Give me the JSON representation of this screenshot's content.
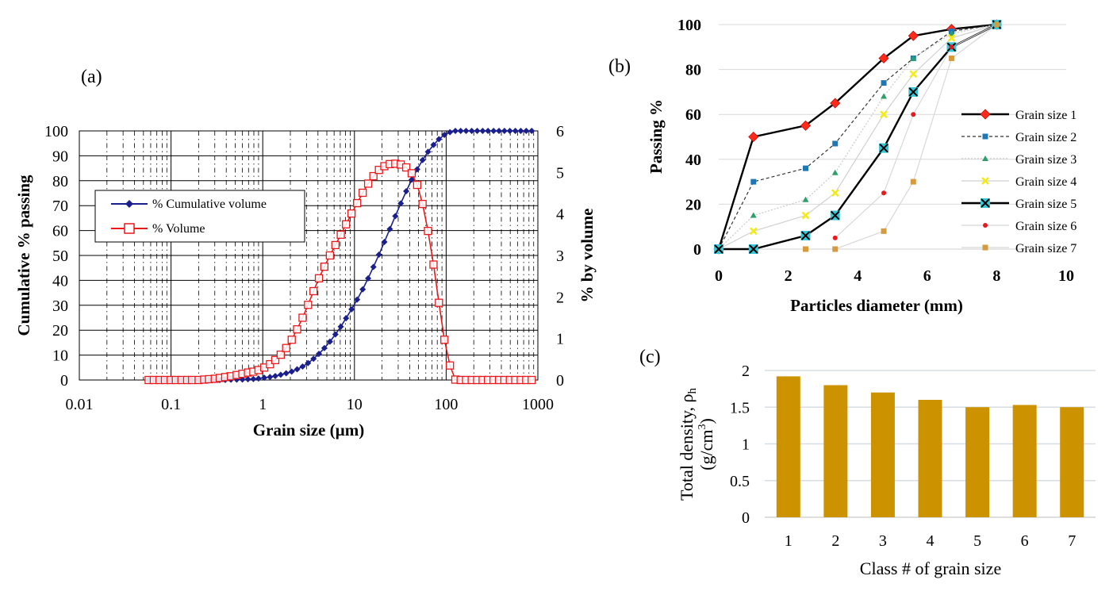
{
  "panels": {
    "a": {
      "label": "(a)"
    },
    "b": {
      "label": "(b)"
    },
    "c": {
      "label": "(c)"
    }
  },
  "chart_data": [
    {
      "id": "a",
      "type": "line",
      "xscale": "log",
      "xlim": [
        0.01,
        1000
      ],
      "xticks": [
        "0.01",
        "0.1",
        "1",
        "10",
        "100",
        "1000"
      ],
      "xlabel": "Grain size (µm)",
      "ylabel": "Cumulative % passing",
      "ylim": [
        0,
        100
      ],
      "yticks": [
        "0",
        "10",
        "20",
        "30",
        "40",
        "50",
        "60",
        "70",
        "80",
        "90",
        "100"
      ],
      "y2label": "% by volume",
      "y2lim": [
        0,
        6
      ],
      "y2ticks": [
        "0",
        "1",
        "2",
        "3",
        "4",
        "5",
        "6"
      ],
      "grid": true,
      "legend_position": "upper-left",
      "series": [
        {
          "name": "% Cumulative volume",
          "axis": "left",
          "color": "#1a1f8c",
          "marker": "diamond",
          "x": [
            0.057,
            0.065,
            0.075,
            0.086,
            0.099,
            0.113,
            0.13,
            0.15,
            0.17,
            0.2,
            0.23,
            0.26,
            0.3,
            0.34,
            0.39,
            0.45,
            0.52,
            0.6,
            0.69,
            0.79,
            0.9,
            1.04,
            1.2,
            1.37,
            1.57,
            1.8,
            2.07,
            2.37,
            2.72,
            3.12,
            3.58,
            4.1,
            4.7,
            5.4,
            6.2,
            7.1,
            8.1,
            9.3,
            10.7,
            12.3,
            14.1,
            16.1,
            18.5,
            21.2,
            24.3,
            27.9,
            32,
            36.7,
            42.1,
            48.3,
            55.3,
            63.4,
            72.8,
            83.4,
            95.7,
            110,
            126,
            144,
            165,
            190,
            218,
            250,
            286,
            329,
            377,
            432,
            495,
            568,
            651,
            747,
            857
          ],
          "values": [
            0,
            0,
            0,
            0,
            0,
            0,
            0,
            0,
            0,
            0,
            0,
            0,
            0,
            0,
            0.05,
            0.1,
            0.15,
            0.2,
            0.3,
            0.4,
            0.6,
            0.9,
            1.2,
            1.6,
            2.1,
            2.7,
            3.4,
            4.3,
            5.4,
            6.8,
            8.5,
            10.5,
            12.8,
            15.4,
            18.3,
            21.4,
            24.8,
            28.4,
            32.3,
            36.4,
            40.8,
            45.4,
            50.3,
            55.4,
            60.6,
            65.8,
            70.9,
            75.8,
            80.4,
            84.6,
            88.3,
            91.6,
            94.4,
            96.7,
            98.4,
            99.5,
            100,
            100,
            100,
            100,
            100,
            100,
            100,
            100,
            100,
            100,
            100,
            100,
            100,
            100,
            100
          ]
        },
        {
          "name": "% Volume",
          "axis": "right",
          "color": "#e8191c",
          "marker": "square-open",
          "x": [
            0.057,
            0.065,
            0.075,
            0.086,
            0.099,
            0.113,
            0.13,
            0.15,
            0.17,
            0.2,
            0.23,
            0.26,
            0.3,
            0.34,
            0.39,
            0.45,
            0.52,
            0.6,
            0.69,
            0.79,
            0.9,
            1.04,
            1.2,
            1.37,
            1.57,
            1.8,
            2.07,
            2.37,
            2.72,
            3.12,
            3.58,
            4.1,
            4.7,
            5.4,
            6.2,
            7.1,
            8.1,
            9.3,
            10.7,
            12.3,
            14.1,
            16.1,
            18.5,
            21.2,
            24.3,
            27.9,
            32,
            36.7,
            42.1,
            48.3,
            55.3,
            63.4,
            72.8,
            83.4,
            95.7,
            110,
            126,
            144,
            165,
            190,
            218,
            250,
            286,
            329,
            377,
            432,
            495,
            568,
            651,
            747,
            857
          ],
          "values": [
            0,
            0,
            0,
            0,
            0,
            0,
            0,
            0,
            0,
            0,
            0.01,
            0.02,
            0.03,
            0.05,
            0.07,
            0.09,
            0.12,
            0.15,
            0.18,
            0.2,
            0.24,
            0.3,
            0.38,
            0.48,
            0.61,
            0.77,
            0.97,
            1.22,
            1.5,
            1.81,
            2.14,
            2.45,
            2.73,
            3,
            3.25,
            3.5,
            3.75,
            4.01,
            4.26,
            4.51,
            4.73,
            4.91,
            5.06,
            5.15,
            5.2,
            5.21,
            5.19,
            5.12,
            4.98,
            4.7,
            4.24,
            3.59,
            2.78,
            1.86,
            0.97,
            0.35,
            0.01,
            0,
            0,
            0,
            0,
            0,
            0,
            0,
            0,
            0,
            0,
            0,
            0,
            0,
            0
          ]
        }
      ]
    },
    {
      "id": "b",
      "type": "line",
      "xlim": [
        0,
        10
      ],
      "xticks": [
        "0",
        "2",
        "4",
        "6",
        "8",
        "10"
      ],
      "xlabel": "Particles diameter (mm)",
      "ylabel": "Passing %",
      "ylim": [
        0,
        100
      ],
      "yticks": [
        "0",
        "20",
        "40",
        "60",
        "80",
        "100"
      ],
      "grid": "horizontal",
      "legend_position": "right",
      "x": [
        0,
        1,
        2.5,
        3.35,
        4.75,
        5.6,
        6.7,
        8
      ],
      "series": [
        {
          "name": "Grain size 1",
          "color": "#000000",
          "marker": "diamond",
          "marker_color": "#ff2a1a",
          "line": "solid-thick",
          "values": [
            0,
            50,
            55,
            65,
            85,
            95,
            98,
            100
          ]
        },
        {
          "name": "Grain size 2",
          "color": "#333333",
          "marker": "square",
          "marker_color": "#1f78b4",
          "line": "dashed",
          "values": [
            0,
            30,
            36,
            47,
            74,
            85,
            97,
            100
          ]
        },
        {
          "name": "Grain size 3",
          "color": "#cfcfcf",
          "marker": "triangle",
          "marker_color": "#2e9e6b",
          "line": "dotted",
          "values": [
            0,
            15,
            22,
            34,
            68,
            85,
            96,
            100
          ]
        },
        {
          "name": "Grain size 4",
          "color": "#d0d0d0",
          "marker": "x",
          "marker_color": "#f2ea1b",
          "line": "thin",
          "values": [
            0,
            8,
            15,
            25,
            60,
            78,
            94,
            100
          ]
        },
        {
          "name": "Grain size 5",
          "color": "#000000",
          "marker": "x-box",
          "marker_color": "#36c6d6",
          "line": "solid-thick",
          "values": [
            0,
            0,
            6,
            15,
            45,
            70,
            90,
            100
          ]
        },
        {
          "name": "Grain size 6",
          "color": "#d8d8d8",
          "marker": "circle",
          "marker_color": "#e8191c",
          "line": "thin",
          "values": [
            null,
            null,
            null,
            5,
            25,
            60,
            90,
            100
          ]
        },
        {
          "name": "Grain size 7",
          "color": "#d8d8d8",
          "marker": "square",
          "marker_color": "#d59b3e",
          "line": "thin",
          "values": [
            null,
            null,
            0,
            0,
            8,
            30,
            85,
            100
          ]
        }
      ]
    },
    {
      "id": "c",
      "type": "bar",
      "categories": [
        "1",
        "2",
        "3",
        "4",
        "5",
        "6",
        "7"
      ],
      "values": [
        1.92,
        1.8,
        1.7,
        1.6,
        1.5,
        1.53,
        1.5
      ],
      "color": "#cc9200",
      "xlabel": "Class # of grain size",
      "ylabel_main": "Total density, ρ",
      "ylabel_sub": "h",
      "ylabel_units_pre": "(g/cm",
      "ylabel_units_sup": "3",
      "ylabel_units_post": ")",
      "ylim": [
        0,
        2
      ],
      "yticks": [
        "0",
        "0.5",
        "1",
        "1.5",
        "2"
      ],
      "grid": "horizontal"
    }
  ]
}
